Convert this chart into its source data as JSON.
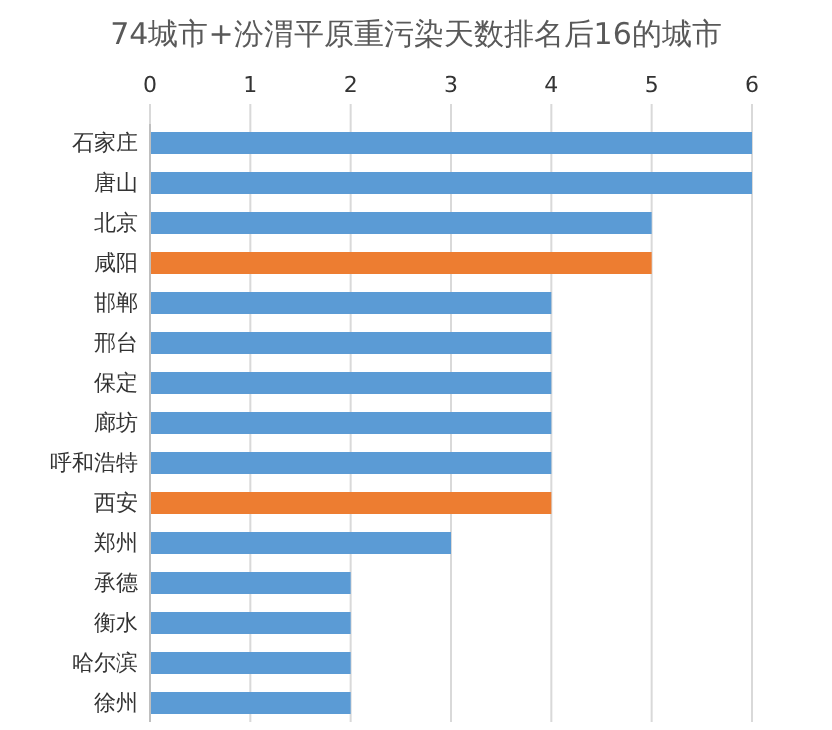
{
  "chart_data": {
    "type": "bar",
    "orientation": "horizontal",
    "title": "74城市+汾渭平原重污染天数排名后16的城市",
    "categories": [
      "石家庄",
      "唐山",
      "北京",
      "咸阳",
      "邯郸",
      "邢台",
      "保定",
      "廊坊",
      "呼和浩特",
      "西安",
      "郑州",
      "承德",
      "衡水",
      "哈尔滨",
      "徐州"
    ],
    "values": [
      6,
      6,
      5,
      5,
      4,
      4,
      4,
      4,
      4,
      4,
      3,
      2,
      2,
      2,
      2
    ],
    "colors": [
      "#5b9bd5",
      "#5b9bd5",
      "#5b9bd5",
      "#ed7d31",
      "#5b9bd5",
      "#5b9bd5",
      "#5b9bd5",
      "#5b9bd5",
      "#5b9bd5",
      "#ed7d31",
      "#5b9bd5",
      "#5b9bd5",
      "#5b9bd5",
      "#5b9bd5",
      "#5b9bd5"
    ],
    "xlim": [
      0,
      6
    ],
    "xticks": [
      0,
      1,
      2,
      3,
      4,
      5,
      6
    ],
    "grid": "x"
  }
}
